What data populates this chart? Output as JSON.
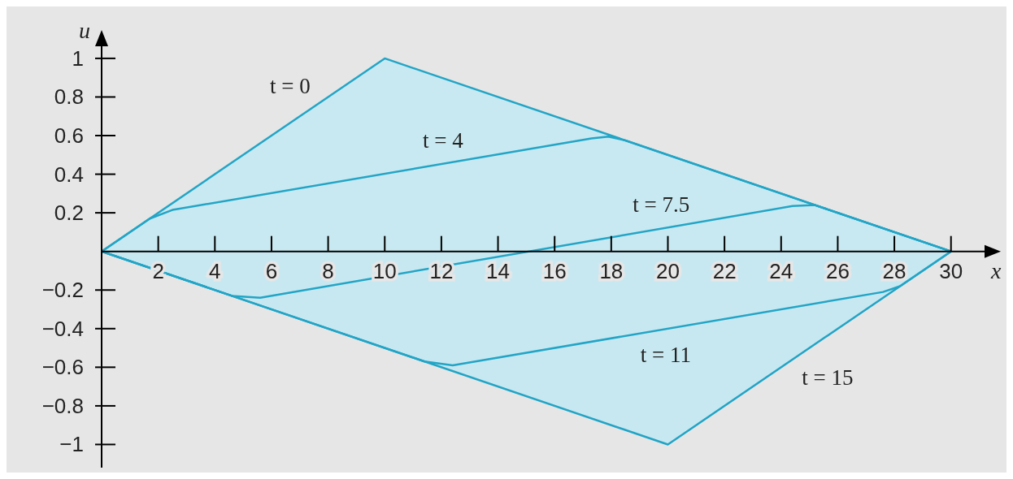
{
  "chart_data": {
    "type": "line",
    "xlabel": "x",
    "ylabel": "u",
    "xlim": [
      0,
      31.3
    ],
    "ylim": [
      -1.12,
      1.13
    ],
    "xticks": [
      2,
      4,
      6,
      8,
      10,
      12,
      14,
      16,
      18,
      20,
      22,
      24,
      26,
      28,
      30
    ],
    "yticks": [
      {
        "value": -1,
        "label": "−1"
      },
      {
        "value": -0.8,
        "label": "−0.8"
      },
      {
        "value": -0.6,
        "label": "−0.6"
      },
      {
        "value": -0.4,
        "label": "−0.4"
      },
      {
        "value": -0.2,
        "label": "−0.2"
      },
      0.2,
      0.4,
      0.6,
      0.8,
      1
    ],
    "grid": false,
    "marker": "none",
    "line_style": "solid",
    "series": [
      {
        "type": "area",
        "color": "#22a5c6",
        "x": [
          0,
          10,
          30
        ],
        "values": [
          0,
          1,
          0
        ]
      },
      {
        "color": "#22a5c6",
        "x": [
          0,
          1.7,
          2.5,
          17.3,
          17.9,
          18.5,
          30
        ],
        "values": [
          0,
          0.17,
          0.215,
          0.585,
          0.595,
          0.575,
          0
        ]
      },
      {
        "color": "#22a5c6",
        "x": [
          0,
          4.6,
          5.6,
          24.4,
          25.2,
          25.8,
          30
        ],
        "values": [
          0,
          -0.23,
          -0.24,
          0.235,
          0.24,
          0.21,
          0
        ]
      },
      {
        "color": "#22a5c6",
        "x": [
          0,
          11.4,
          12.4,
          27.6,
          28.2,
          30
        ],
        "values": [
          0,
          -0.57,
          -0.59,
          -0.21,
          -0.18,
          0
        ]
      },
      {
        "type": "area",
        "color": "#21a4c5",
        "x": [
          0,
          20,
          30
        ],
        "values": [
          0,
          -1,
          0
        ]
      }
    ],
    "annotations": [
      {
        "text": "t = 0",
        "x": 7.6,
        "y": 0.76
      },
      {
        "text": "t = 4",
        "x": 13,
        "y": 0.4775
      },
      {
        "text": "t = 7.5",
        "x": 21,
        "y": 0.145
      },
      {
        "text": "t = 11",
        "x": 18.8,
        "y": -0.43
      },
      {
        "text": "t = 15",
        "x": 24.5,
        "y": -0.55
      }
    ]
  }
}
